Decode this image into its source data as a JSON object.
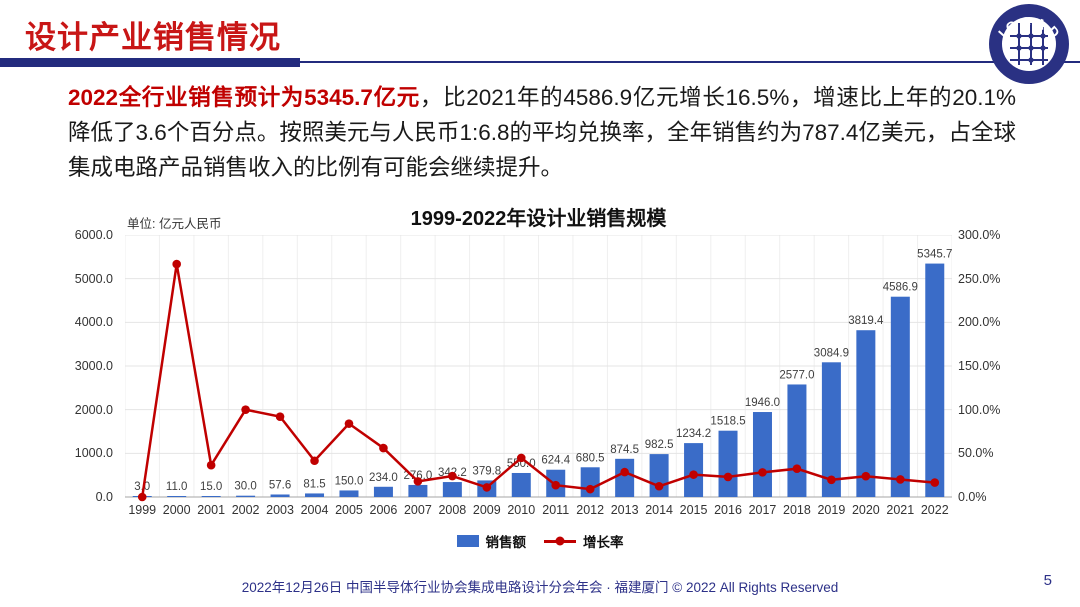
{
  "header": {
    "title": "设计产业销售情况",
    "page_number": "5",
    "logo_text": "ICCAD"
  },
  "paragraph": {
    "highlight": "2022全行业销售预计为5345.7亿元",
    "rest": "，比2021年的4586.9亿元增长16.5%，增速比上年的20.1%降低了3.6个百分点。按照美元与人民币1:6.8的平均兑换率，全年销售约为787.4亿美元，占全球集成电路产品销售收入的比例有可能会继续提升。"
  },
  "chart": {
    "title": "1999-2022年设计业销售规模",
    "unit_label": "单位: 亿元人民币",
    "colors": {
      "bar": "#3a6cc8",
      "line": "#c00000",
      "grid": "#e4e4e4",
      "axis": "#a6a6a6"
    },
    "legend": [
      {
        "label": "销售额",
        "type": "bar",
        "color": "#3a6cc8"
      },
      {
        "label": "增长率",
        "type": "line",
        "color": "#c00000"
      }
    ]
  },
  "chart_data": {
    "type": "bar",
    "title": "1999-2022年设计业销售规模",
    "categories": [
      "1999",
      "2000",
      "2001",
      "2002",
      "2003",
      "2004",
      "2005",
      "2006",
      "2007",
      "2008",
      "2009",
      "2010",
      "2011",
      "2012",
      "2013",
      "2014",
      "2015",
      "2016",
      "2017",
      "2018",
      "2019",
      "2020",
      "2021",
      "2022"
    ],
    "series": [
      {
        "name": "销售额",
        "type": "bar",
        "axis": "left",
        "color": "#3a6cc8",
        "values": [
          3.0,
          11.0,
          15.0,
          30.0,
          57.6,
          81.5,
          150.0,
          234.0,
          276.0,
          342.2,
          379.8,
          550.0,
          624.4,
          680.5,
          874.5,
          982.5,
          1234.2,
          1518.5,
          1946.0,
          2577.0,
          3084.9,
          3819.4,
          4586.9,
          5345.7
        ]
      },
      {
        "name": "增长率",
        "type": "line",
        "axis": "right",
        "color": "#c00000",
        "values": [
          0.0,
          266.7,
          36.4,
          100.0,
          92.0,
          41.5,
          84.0,
          56.0,
          17.9,
          24.0,
          11.0,
          44.8,
          13.5,
          9.0,
          28.5,
          12.3,
          25.6,
          23.0,
          28.2,
          32.4,
          19.7,
          23.8,
          20.1,
          16.5
        ]
      }
    ],
    "bar_labels": [
      "3.0",
      "11.0",
      "15.0",
      "30.0",
      "57.6",
      "81.5",
      "150.0",
      "234.0",
      "276.0",
      "342.2",
      "379.8",
      "550.0",
      "624.4",
      "680.5",
      "874.5",
      "982.5",
      "1234.2",
      "1518.5",
      "1946.0",
      "2577.0",
      "3084.9",
      "3819.4",
      "4586.9",
      "5345.7"
    ],
    "left_axis": {
      "min": 0,
      "max": 6000,
      "ticks": [
        "6000.0",
        "5000.0",
        "4000.0",
        "3000.0",
        "2000.0",
        "1000.0",
        "0.0"
      ]
    },
    "right_axis": {
      "min": 0,
      "max": 300,
      "ticks": [
        "300.0%",
        "250.0%",
        "200.0%",
        "150.0%",
        "100.0%",
        "50.0%",
        "0.0%"
      ]
    },
    "grid": true,
    "legend_position": "bottom"
  },
  "footer": {
    "text": "2022年12月26日 中国半导体行业协会集成电路设计分会年会 · 福建厦门 © 2022 All Rights Reserved"
  }
}
